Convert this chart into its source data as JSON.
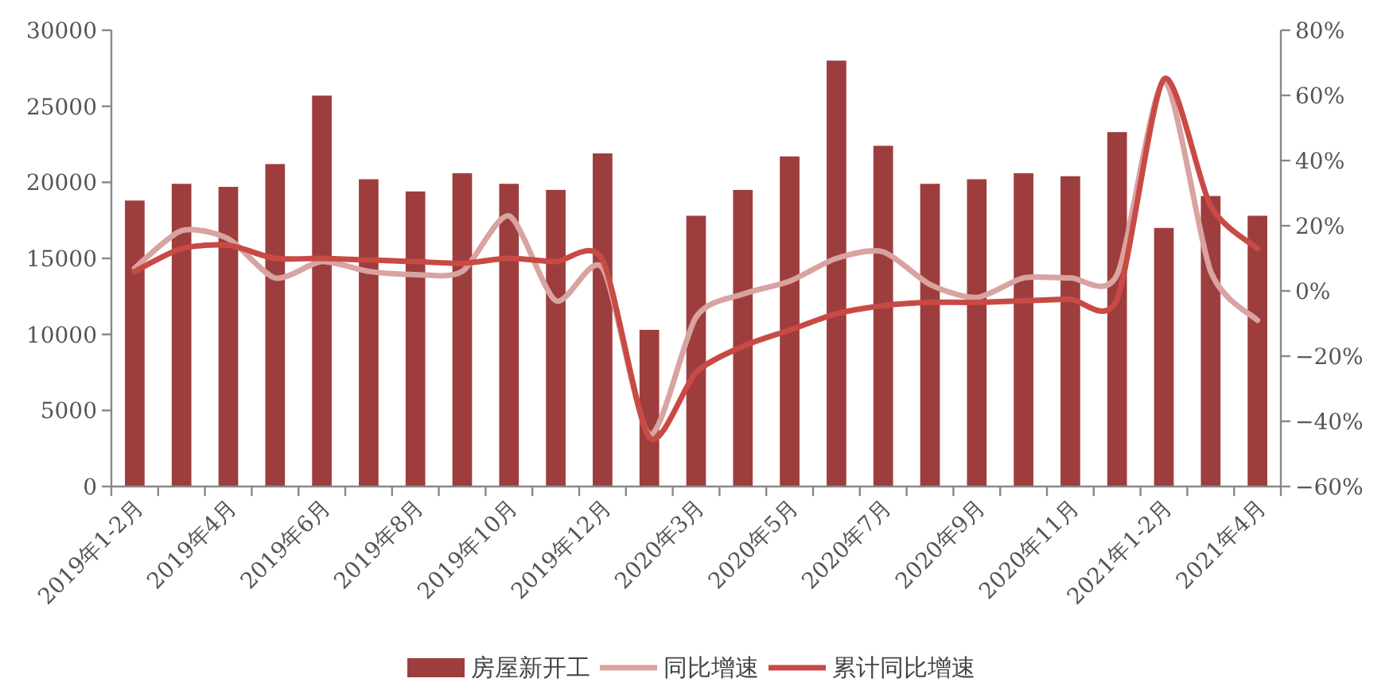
{
  "chart_data": {
    "type": "bar",
    "categories": [
      "2019年1-2月",
      null,
      "2019年4月",
      null,
      "2019年6月",
      null,
      "2019年8月",
      null,
      "2019年10月",
      null,
      "2019年12月",
      null,
      "2020年3月",
      null,
      "2020年5月",
      null,
      "2020年7月",
      null,
      "2020年9月",
      null,
      "2020年11月",
      null,
      "2021年1-2月",
      null,
      "2021年4月"
    ],
    "series": [
      {
        "name": "房屋新开工",
        "color": "#9e3d3d",
        "values": [
          18800,
          19900,
          19700,
          21200,
          25700,
          20200,
          19400,
          20600,
          19900,
          19500,
          21900,
          10300,
          17800,
          19500,
          21700,
          28000,
          22400,
          19900,
          20200,
          20600,
          20400,
          23300,
          17000,
          19100,
          17800
        ]
      },
      {
        "name": "同比增速",
        "type": "line",
        "axis": "y2",
        "color": "#d8a3a0",
        "values": [
          7,
          18.5,
          16,
          4,
          9,
          6,
          5,
          6,
          23,
          -3,
          7,
          -44,
          -8,
          -1,
          3,
          10,
          12,
          2,
          -2,
          4,
          4,
          5,
          64,
          6,
          -9
        ]
      },
      {
        "name": "累计同比增速",
        "type": "line",
        "axis": "y2",
        "color": "#c84a45",
        "values": [
          6,
          13,
          14,
          10,
          10,
          9.5,
          9,
          8.5,
          10,
          9,
          9.5,
          -45,
          -25,
          -17,
          -12,
          -7,
          -4.5,
          -3.5,
          -3.5,
          -3,
          -2.5,
          -2.5,
          65,
          26,
          13
        ]
      }
    ],
    "ylim": [
      0,
      30000
    ],
    "yticks": [
      0,
      5000,
      10000,
      15000,
      20000,
      25000,
      30000
    ],
    "y2lim": [
      -60,
      80
    ],
    "y2ticks": [
      {
        "value": -60,
        "label": "−60%"
      },
      {
        "value": -40,
        "label": "−40%"
      },
      {
        "value": -20,
        "label": "−20%"
      },
      {
        "value": 0,
        "label": "0%"
      },
      {
        "value": 20,
        "label": "20%"
      },
      {
        "value": 40,
        "label": "40%"
      },
      {
        "value": 60,
        "label": "60%"
      },
      {
        "value": 80,
        "label": "80%"
      }
    ],
    "legend": "bottom",
    "grid": false
  }
}
